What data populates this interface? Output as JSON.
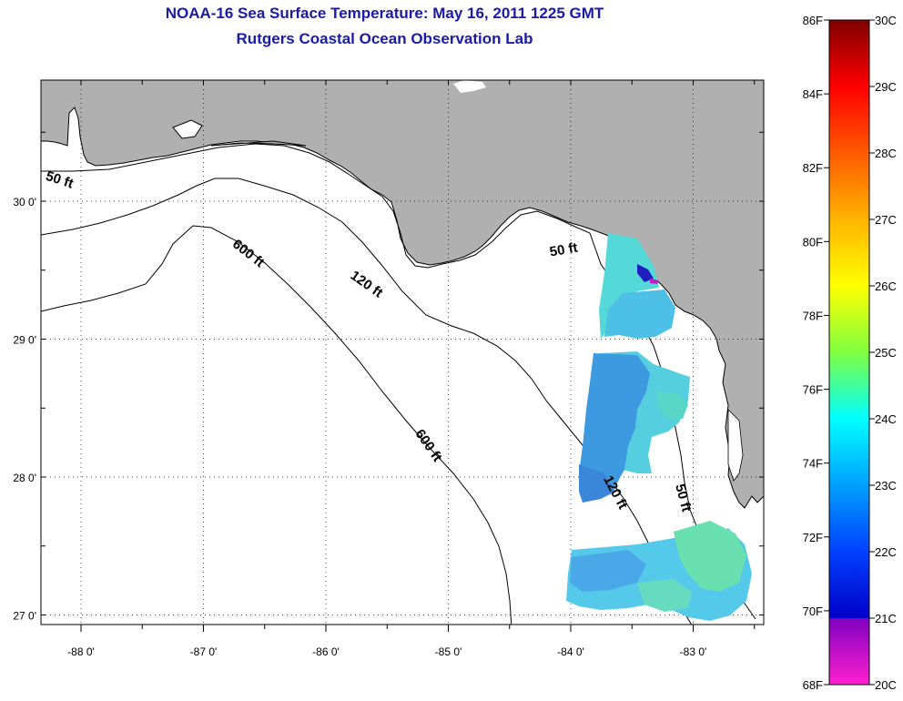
{
  "title": {
    "line1": "NOAA-16 Sea Surface Temperature:  May 16, 2011 1225 GMT",
    "line2": "Rutgers Coastal Ocean Observation Lab"
  },
  "map": {
    "land_color": "#b0b0b0",
    "water_color": "#ffffff",
    "lon_ticks": [
      {
        "label": "-88 0'",
        "value": -88
      },
      {
        "label": "-87 0'",
        "value": -87
      },
      {
        "label": "-86 0'",
        "value": -86
      },
      {
        "label": "-85 0'",
        "value": -85
      },
      {
        "label": "-84 0'",
        "value": -84
      },
      {
        "label": "-83 0'",
        "value": -83
      }
    ],
    "lat_ticks": [
      {
        "label": "30 0'",
        "value": 30
      },
      {
        "label": "29 0'",
        "value": 29
      },
      {
        "label": "28 0'",
        "value": 28
      },
      {
        "label": "27 0'",
        "value": 27
      }
    ],
    "contour_labels": [
      {
        "text": "50 ft",
        "depth": 50
      },
      {
        "text": "600 ft",
        "depth": 600
      },
      {
        "text": "120 ft",
        "depth": 120
      },
      {
        "text": "50 ft",
        "depth": 50
      },
      {
        "text": "600 ft",
        "depth": 600
      },
      {
        "text": "120 ft",
        "depth": 120
      },
      {
        "text": "50 ft",
        "depth": 50
      }
    ]
  },
  "colorbar": {
    "fahrenheit_labels": [
      "86F",
      "84F",
      "82F",
      "80F",
      "78F",
      "76F",
      "74F",
      "72F",
      "70F",
      "68F"
    ],
    "celsius_labels": [
      "30C",
      "29C",
      "28C",
      "27C",
      "26C",
      "25C",
      "24C",
      "23C",
      "22C",
      "21C",
      "20C"
    ],
    "gradient_stops": [
      {
        "c": 30,
        "color": "#800000"
      },
      {
        "c": 29,
        "color": "#ff0000"
      },
      {
        "c": 28,
        "color": "#ff5a00"
      },
      {
        "c": 27,
        "color": "#ffb400"
      },
      {
        "c": 26,
        "color": "#ffff00"
      },
      {
        "c": 25,
        "color": "#80ff40"
      },
      {
        "c": 24,
        "color": "#00ffff"
      },
      {
        "c": 23,
        "color": "#00a0ff"
      },
      {
        "c": 22,
        "color": "#0040ff"
      },
      {
        "c": 21,
        "color": "#0000c8"
      },
      {
        "c": 21,
        "color": "#8000c0"
      },
      {
        "c": 20,
        "color": "#ff20d0"
      }
    ]
  }
}
